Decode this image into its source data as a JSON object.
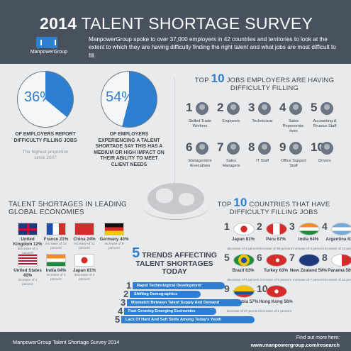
{
  "header": {
    "year": "2014",
    "title": "TALENT SHORTAGE SURVEY",
    "logo_text": "ManpowerGroup",
    "intro": "ManpowerGroup spoke to over 37,000 employers in 42 countries and territories to look at the extent to which they are having difficulty finding the right talent and what jobs are most difficult to fill."
  },
  "stats": [
    {
      "value": "36%",
      "percent": 36,
      "caption": "OF EMPLOYERS REPORT DIFFICULTY FILLING JOBS",
      "note": "The highest proportion since 2007"
    },
    {
      "value": "54%",
      "percent": 54,
      "caption": "OF EMPLOYERS EXPERIENCING A TALENT SHORTAGE SAY THIS HAS A MEDIUM OR HIGH IMPACT ON THEIR ABILITY TO MEET CLIENT NEEDS"
    }
  ],
  "jobs": {
    "heading_pre": "TOP",
    "heading_num": "10",
    "heading_post": "JOBS EMPLOYERS ARE HAVING DIFFICULTY FILLING",
    "items": [
      {
        "num": "1",
        "label": "Skilled Trade Workers"
      },
      {
        "num": "2",
        "label": "Engineers"
      },
      {
        "num": "3",
        "label": "Technicians"
      },
      {
        "num": "4",
        "label": "Sales Representa-tives"
      },
      {
        "num": "5",
        "label": "Accounting & Finance Staff"
      },
      {
        "num": "6",
        "label": "Management /Executives"
      },
      {
        "num": "7",
        "label": "Sales Managers"
      },
      {
        "num": "8",
        "label": "IT Staff"
      },
      {
        "num": "9",
        "label": "Office Support Staff"
      },
      {
        "num": "10",
        "label": "Drivers"
      }
    ]
  },
  "economies": {
    "heading": "TALENT SHORTAGES IN LEADING GLOBAL ECONOMIES",
    "items": [
      {
        "name": "United Kingdom 12%",
        "sub": "decrease of 1 percent"
      },
      {
        "name": "France 21%",
        "sub": "increase of 12 percent"
      },
      {
        "name": "China 24%",
        "sub": "increase of 11 percent"
      },
      {
        "name": "Germany 40%",
        "sub": "increase of 5 percent"
      },
      {
        "name": "United States 40%",
        "sub": "increase of 1 percent"
      },
      {
        "name": "India 64%",
        "sub": "increase of 3 percent"
      },
      {
        "name": "Japan 81%",
        "sub": "decrease of 4 percent"
      }
    ]
  },
  "countries": {
    "heading_pre": "TOP",
    "heading_num": "10",
    "heading_post": "COUNTRIES THAT HAVE DIFFICULTY FILLING JOBS",
    "items": [
      {
        "num": "1",
        "name": "Japan 81%",
        "sub": "decrease of 4 percent"
      },
      {
        "num": "2",
        "name": "Peru 67%",
        "sub": "increase of 36 percent"
      },
      {
        "num": "3",
        "name": "India 64%",
        "sub": "increase of 3 percent"
      },
      {
        "num": "4",
        "name": "Argentina 63%",
        "sub": "increase of 23 percent"
      },
      {
        "num": "5",
        "name": "Brazil 63%",
        "sub": "decrease of 5 percent"
      },
      {
        "num": "6",
        "name": "Turkey 63%",
        "sub": "increase of 5 percent"
      },
      {
        "num": "7",
        "name": "New Zealand 59%",
        "sub": "increase of 7 percent"
      },
      {
        "num": "8",
        "name": "Panama 58%",
        "sub": "increase of 22 percent"
      },
      {
        "num": "9",
        "name": "Colombia 57%",
        "sub": "increase of 27 percent"
      },
      {
        "num": "10",
        "name": "Hong Kong 56%",
        "sub": "increase of 1 percent"
      }
    ]
  },
  "trends": {
    "num": "5",
    "heading": "TRENDS AFFECTING TALENT SHORTAGES TODAY",
    "items": [
      {
        "num": "1",
        "label": "Rapid Technological Development"
      },
      {
        "num": "2",
        "label": "Shifting Demographics"
      },
      {
        "num": "3",
        "label": "Mismatch Between Talent Supply And Demand"
      },
      {
        "num": "4",
        "label": "Fast Growing Emerging Economies"
      },
      {
        "num": "5",
        "label": "Lack Of Hard And Soft Skills Among Today's Youth"
      }
    ]
  },
  "footer": {
    "left": "ManpowerGroup Talent Shortage Survey 2014",
    "right_line1": "Find out more here:",
    "right_line2": "www.manpowergroup.com/research"
  },
  "colors": {
    "accent": "#2c7fd1",
    "header_bg": "#48525f",
    "page_bg": "#e9eaeb",
    "text": "#3b4553"
  }
}
